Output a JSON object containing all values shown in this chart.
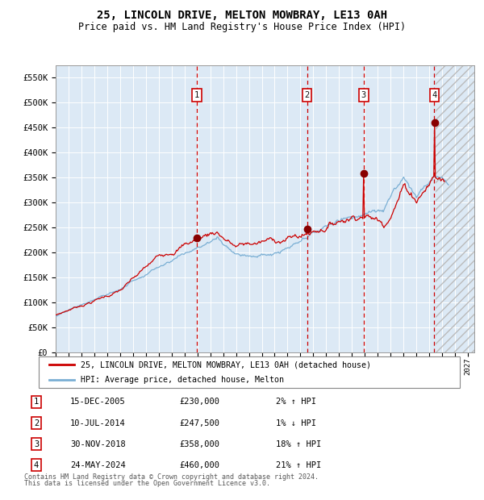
{
  "title": "25, LINCOLN DRIVE, MELTON MOWBRAY, LE13 0AH",
  "subtitle": "Price paid vs. HM Land Registry's House Price Index (HPI)",
  "title_fontsize": 10,
  "subtitle_fontsize": 8.5,
  "bg_color": "#dce9f5",
  "grid_color": "#ffffff",
  "red_line_color": "#cc0000",
  "blue_line_color": "#7aafd4",
  "sale_marker_color": "#880000",
  "sales": [
    {
      "num": 1,
      "date_str": "15-DEC-2005",
      "x_year": 2005.96,
      "price": 230000,
      "hpi_pct": "2%",
      "direction": "↑"
    },
    {
      "num": 2,
      "date_str": "10-JUL-2014",
      "x_year": 2014.52,
      "price": 247500,
      "hpi_pct": "1%",
      "direction": "↓"
    },
    {
      "num": 3,
      "date_str": "30-NOV-2018",
      "x_year": 2018.91,
      "price": 358000,
      "hpi_pct": "18%",
      "direction": "↑"
    },
    {
      "num": 4,
      "date_str": "24-MAY-2024",
      "x_year": 2024.4,
      "price": 460000,
      "hpi_pct": "21%",
      "direction": "↑"
    }
  ],
  "future_cutoff": 2024.5,
  "xmin": 1995.0,
  "xmax": 2027.5,
  "ymin": 0,
  "ymax": 575000,
  "yticks": [
    0,
    50000,
    100000,
    150000,
    200000,
    250000,
    300000,
    350000,
    400000,
    450000,
    500000,
    550000
  ],
  "legend_line1": "25, LINCOLN DRIVE, MELTON MOWBRAY, LE13 0AH (detached house)",
  "legend_line2": "HPI: Average price, detached house, Melton",
  "footer1": "Contains HM Land Registry data © Crown copyright and database right 2024.",
  "footer2": "This data is licensed under the Open Government Licence v3.0.",
  "xtick_years": [
    1995,
    1996,
    1997,
    1998,
    1999,
    2000,
    2001,
    2002,
    2003,
    2004,
    2005,
    2006,
    2007,
    2008,
    2009,
    2010,
    2011,
    2012,
    2013,
    2014,
    2015,
    2016,
    2017,
    2018,
    2019,
    2020,
    2021,
    2022,
    2023,
    2024,
    2025,
    2026,
    2027
  ]
}
